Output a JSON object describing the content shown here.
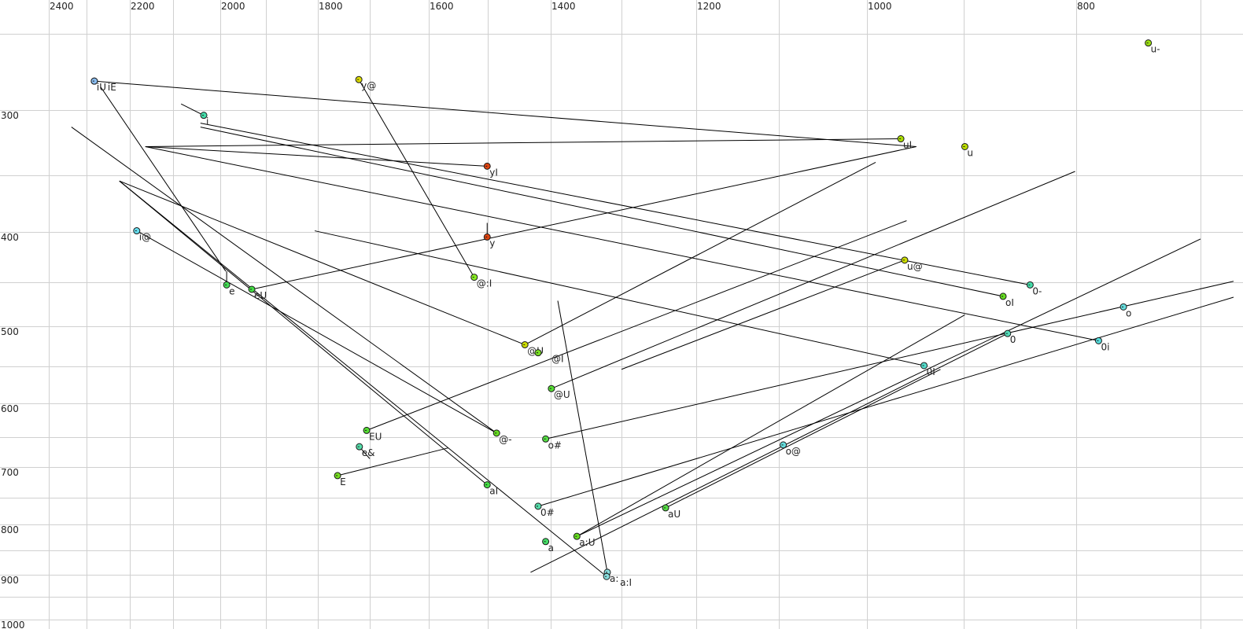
{
  "chart_data": {
    "type": "scatter",
    "title": "",
    "xlabel": "",
    "ylabel": "",
    "x_axis": {
      "position": "top",
      "reversed": true,
      "scale": "nonlinear",
      "tick_labels": [
        "2400",
        "2200",
        "2000",
        "1800",
        "1600",
        "1400",
        "1200",
        "1000",
        "800"
      ],
      "tick_values": [
        2400,
        2200,
        2000,
        1800,
        1600,
        1400,
        1200,
        1000,
        800
      ],
      "grid_values": [
        2400,
        2300,
        2200,
        2100,
        2000,
        1900,
        1800,
        1700,
        1600,
        1500,
        1400,
        1300,
        1200,
        1100,
        1000,
        900,
        800,
        700
      ]
    },
    "y_axis": {
      "position": "left",
      "reversed": true,
      "scale": "nonlinear",
      "tick_labels": [
        "300",
        "400",
        "500",
        "600",
        "700",
        "800",
        "900",
        "1000"
      ],
      "tick_values": [
        300,
        400,
        500,
        600,
        700,
        800,
        900,
        1000
      ],
      "grid_values": [
        250,
        300,
        350,
        400,
        450,
        500,
        550,
        600,
        650,
        700,
        750,
        800,
        850,
        900,
        950,
        1000
      ]
    },
    "grid": true,
    "points": [
      {
        "label": "iU",
        "x": 2282,
        "y": 281,
        "color": "#88bbee"
      },
      {
        "label": "iE",
        "x": 2282,
        "y": 281,
        "color": "#88bbee"
      },
      {
        "label": "y@",
        "x": 1721,
        "y": 280,
        "color": "#dddd00"
      },
      {
        "label": "i",
        "x": 2035,
        "y": 304,
        "color": "#44ddaa"
      },
      {
        "label": "yI",
        "x": 1501,
        "y": 343,
        "color": "#dd4411"
      },
      {
        "label": "uI",
        "x": 965,
        "y": 322,
        "color": "#aadd00"
      },
      {
        "label": "u",
        "x": 899,
        "y": 328,
        "color": "#bbdd00"
      },
      {
        "label": "u-",
        "x": 742,
        "y": 256,
        "color": "#99dd11"
      },
      {
        "label": "y",
        "x": 1501,
        "y": 405,
        "color": "#dd4411"
      },
      {
        "label": "i@",
        "x": 2184,
        "y": 399,
        "color": "#66ddee"
      },
      {
        "label": "e",
        "x": 1986,
        "y": 453,
        "color": "#44dd55"
      },
      {
        "label": "eU",
        "x": 1931,
        "y": 458,
        "color": "#44dd44"
      },
      {
        "label": "@:I",
        "x": 1523,
        "y": 445,
        "color": "#88ee22"
      },
      {
        "label": "u@",
        "x": 961,
        "y": 428,
        "color": "#ccdd00"
      },
      {
        "label": "0-",
        "x": 841,
        "y": 453,
        "color": "#44ddaa"
      },
      {
        "label": "oI",
        "x": 865,
        "y": 466,
        "color": "#66dd22"
      },
      {
        "label": "o",
        "x": 762,
        "y": 478,
        "color": "#66dddd"
      },
      {
        "label": "0",
        "x": 861,
        "y": 509,
        "color": "#55ddbb"
      },
      {
        "label": "0i",
        "x": 782,
        "y": 518,
        "color": "#55dddd"
      },
      {
        "label": "@U",
        "x": 1441,
        "y": 523,
        "color": "#ccdd00"
      },
      {
        "label": "@I",
        "x": 1420,
        "y": 533,
        "color": "#77dd22"
      },
      {
        "label": "0I",
        "x": 941,
        "y": 549,
        "color": "#55ddcc"
      },
      {
        "label": "@U",
        "x": 1399,
        "y": 580,
        "color": "#55dd33"
      },
      {
        "label": "EU",
        "x": 1706,
        "y": 640,
        "color": "#55dd33"
      },
      {
        "label": "@-",
        "x": 1486,
        "y": 644,
        "color": "#66dd22"
      },
      {
        "label": "o#",
        "x": 1408,
        "y": 653,
        "color": "#55dd44"
      },
      {
        "label": "e&",
        "x": 1720,
        "y": 666,
        "color": "#55ddaa"
      },
      {
        "label": "E",
        "x": 1762,
        "y": 714,
        "color": "#77dd22"
      },
      {
        "label": "o@",
        "x": 1095,
        "y": 663,
        "color": "#66dddd"
      },
      {
        "label": "aI",
        "x": 1501,
        "y": 729,
        "color": "#44dd44"
      },
      {
        "label": "0#",
        "x": 1420,
        "y": 766,
        "color": "#55ddaa"
      },
      {
        "label": "aU",
        "x": 1241,
        "y": 769,
        "color": "#55dd44"
      },
      {
        "label": "a:U",
        "x": 1363,
        "y": 823,
        "color": "#66dd22"
      },
      {
        "label": "a",
        "x": 1408,
        "y": 833,
        "color": "#44dd66"
      },
      {
        "label": "a:",
        "x": 1320,
        "y": 895,
        "color": "#88dddd"
      },
      {
        "label": "a:I",
        "x": 1321,
        "y": 904,
        "color": "#88dddd"
      }
    ],
    "segments": [
      {
        "from": [
          2282,
          281
        ],
        "to": [
          949,
          328
        ]
      },
      {
        "from": [
          2267,
          285
        ],
        "to": [
          1988,
          439
        ]
      },
      {
        "from": [
          1986,
          439
        ],
        "to": [
          1986,
          453
        ]
      },
      {
        "from": [
          1721,
          280
        ],
        "to": [
          1523,
          445
        ]
      },
      {
        "from": [
          2083,
          296
        ],
        "to": [
          2035,
          304
        ]
      },
      {
        "from": [
          2042,
          310
        ],
        "to": [
          841,
          453
        ]
      },
      {
        "from": [
          2042,
          313
        ],
        "to": [
          865,
          466
        ]
      },
      {
        "from": [
          2164,
          328
        ],
        "to": [
          965,
          322
        ]
      },
      {
        "from": [
          2164,
          328
        ],
        "to": [
          1501,
          343
        ]
      },
      {
        "from": [
          2164,
          328
        ],
        "to": [
          782,
          518
        ]
      },
      {
        "from": [
          949,
          328
        ],
        "to": [
          1931,
          458
        ]
      },
      {
        "from": [
          2340,
          313
        ],
        "to": [
          1486,
          644
        ]
      },
      {
        "from": [
          2184,
          399
        ],
        "to": [
          1486,
          644
        ]
      },
      {
        "from": [
          2224,
          355
        ],
        "to": [
          1441,
          523
        ]
      },
      {
        "from": [
          2224,
          355
        ],
        "to": [
          1501,
          729
        ]
      },
      {
        "from": [
          2224,
          355
        ],
        "to": [
          1321,
          904
        ]
      },
      {
        "from": [
          1806,
          399
        ],
        "to": [
          941,
          549
        ]
      },
      {
        "from": [
          1501,
          392
        ],
        "to": [
          1501,
          405
        ]
      },
      {
        "from": [
          1441,
          523
        ],
        "to": [
          991,
          340
        ]
      },
      {
        "from": [
          1706,
          640
        ],
        "to": [
          959,
          390
        ]
      },
      {
        "from": [
          1399,
          580
        ],
        "to": [
          801,
          347
        ]
      },
      {
        "from": [
          1300,
          554
        ],
        "to": [
          961,
          428
        ]
      },
      {
        "from": [
          1762,
          714
        ],
        "to": [
          1567,
          668
        ]
      },
      {
        "from": [
          1720,
          666
        ],
        "to": [
          1700,
          686
        ]
      },
      {
        "from": [
          1408,
          653
        ],
        "to": [
          676,
          449
        ]
      },
      {
        "from": [
          1420,
          766
        ],
        "to": [
          676,
          467
        ]
      },
      {
        "from": [
          1363,
          823
        ],
        "to": [
          700,
          407
        ]
      },
      {
        "from": [
          1363,
          823
        ],
        "to": [
          899,
          487
        ]
      },
      {
        "from": [
          1432,
          895
        ],
        "to": [
          861,
          509
        ]
      },
      {
        "from": [
          1241,
          769
        ],
        "to": [
          924,
          554
        ]
      },
      {
        "from": [
          1390,
          471
        ],
        "to": [
          1320,
          895
        ]
      }
    ]
  }
}
